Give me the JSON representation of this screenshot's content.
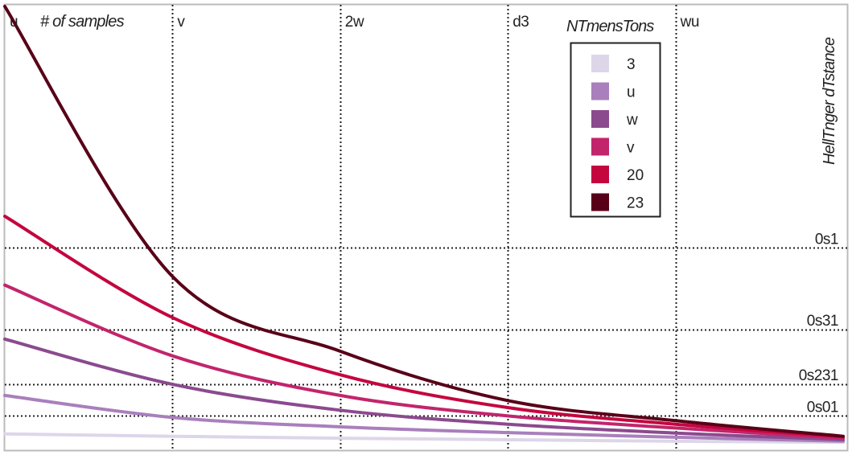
{
  "chart_data": {
    "type": "line",
    "title": "",
    "xlabel": "# of samples",
    "ylabel": "HellTnger dTstance",
    "x_ticks": [
      "u",
      "v",
      "2w",
      "d3",
      "wu"
    ],
    "y_ticks": [
      "0s1",
      "0s31",
      "0s231",
      "0s01"
    ],
    "x": [
      0,
      1,
      2,
      3,
      4,
      5
    ],
    "grid": true,
    "legend": {
      "title": "NTmensTons",
      "placement": "top-right",
      "entries": [
        "3",
        "u",
        "w",
        "v",
        "20",
        "23"
      ]
    },
    "series": [
      {
        "name": "3",
        "color": "#ddd6e9",
        "values": [
          0.00101,
          0.00096,
          0.00092,
          0.00089,
          0.00086,
          0.00084
        ]
      },
      {
        "name": "u",
        "color": "#a97fbc",
        "values": [
          0.00235,
          0.00145,
          0.00118,
          0.00104,
          0.00094,
          0.00086
        ]
      },
      {
        "name": "w",
        "color": "#8b4a8e",
        "values": [
          0.0081,
          0.003,
          0.0017,
          0.00125,
          0.00103,
          0.00089
        ]
      },
      {
        "name": "v",
        "color": "#c2256c",
        "values": [
          0.0265,
          0.0056,
          0.00235,
          0.0015,
          0.00115,
          0.00092
        ]
      },
      {
        "name": "20",
        "color": "#c4063f",
        "values": [
          0.12,
          0.013,
          0.0037,
          0.0018,
          0.00125,
          0.00095
        ]
      },
      {
        "name": "23",
        "color": "#580018",
        "values": [
          12.0,
          0.032,
          0.0062,
          0.0021,
          0.00135,
          0.00096
        ]
      }
    ],
    "ylim": [
      0.0008,
      12
    ],
    "y_tick_values": [
      0.06,
      0.01,
      0.003,
      0.0015
    ],
    "x_scale": "linear",
    "y_scale": "log"
  }
}
